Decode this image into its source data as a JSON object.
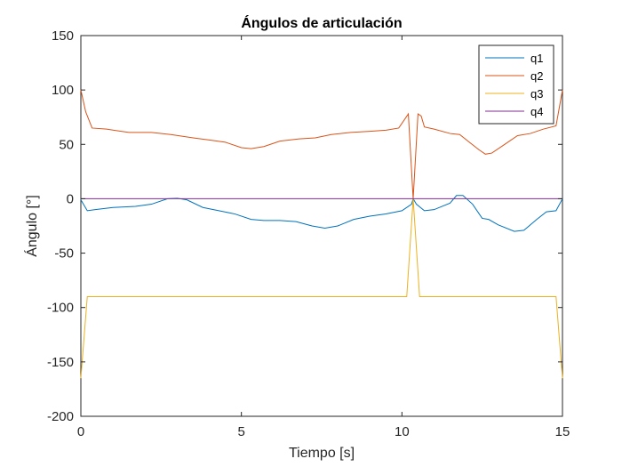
{
  "chart_data": {
    "type": "line",
    "title": "Ángulos de articulación",
    "xlabel": "Tiempo [s]",
    "ylabel": "Ángulo [°]",
    "xlim": [
      0,
      15
    ],
    "ylim": [
      -200,
      150
    ],
    "xticks": [
      0,
      5,
      10,
      15
    ],
    "yticks": [
      -200,
      -150,
      -100,
      -50,
      0,
      50,
      100,
      150
    ],
    "grid": false,
    "legend_position": "top-right",
    "series": [
      {
        "name": "q1",
        "color": "#0072BD",
        "x": [
          0,
          0.2,
          0.45,
          1,
          1.7,
          2.2,
          2.7,
          3.0,
          3.3,
          3.8,
          4.3,
          4.8,
          5.3,
          5.7,
          6.2,
          6.7,
          7.2,
          7.6,
          8.0,
          8.5,
          9.0,
          9.5,
          10.0,
          10.3,
          10.35,
          10.45,
          10.7,
          11.0,
          11.5,
          11.7,
          11.9,
          12.2,
          12.5,
          12.7,
          13.0,
          13.5,
          13.8,
          14.2,
          14.5,
          14.8,
          15.0
        ],
        "y": [
          -1,
          -11,
          -10,
          -8,
          -7,
          -5,
          0,
          0.5,
          -1,
          -8,
          -11,
          -14,
          -19,
          -20,
          -20,
          -21,
          -25,
          -27,
          -25,
          -19,
          -16,
          -14,
          -11,
          -5,
          0,
          -5,
          -11,
          -10,
          -4,
          3,
          3,
          -5,
          -18,
          -19,
          -24,
          -30,
          -29,
          -19,
          -12,
          -11,
          0
        ]
      },
      {
        "name": "q2",
        "color": "#D95319",
        "x": [
          0,
          0.15,
          0.35,
          0.8,
          1.5,
          2.2,
          2.8,
          3.5,
          4.0,
          4.5,
          5.0,
          5.3,
          5.7,
          6.2,
          6.8,
          7.3,
          7.8,
          8.4,
          9.0,
          9.5,
          9.9,
          10.2,
          10.35,
          10.5,
          10.6,
          10.7,
          11.0,
          11.5,
          11.8,
          12.1,
          12.4,
          12.6,
          12.8,
          13.2,
          13.6,
          14.0,
          14.4,
          14.8,
          15.0
        ],
        "y": [
          100,
          80,
          65,
          64,
          61,
          61,
          59,
          56,
          54,
          52,
          47,
          46,
          48,
          53,
          55,
          56,
          59,
          61,
          62,
          63,
          65,
          78,
          0,
          78,
          76,
          66,
          64,
          60,
          59,
          52,
          45,
          41,
          42,
          50,
          58,
          60,
          64,
          67,
          100
        ]
      },
      {
        "name": "q3",
        "color": "#EDB120",
        "x": [
          0,
          0.2,
          10.15,
          10.35,
          10.55,
          14.8,
          15.0
        ],
        "y": [
          -165,
          -90,
          -90,
          0,
          -90,
          -90,
          -165
        ]
      },
      {
        "name": "q4",
        "color": "#7E2F8E",
        "x": [
          0,
          15
        ],
        "y": [
          0,
          0
        ]
      }
    ]
  }
}
